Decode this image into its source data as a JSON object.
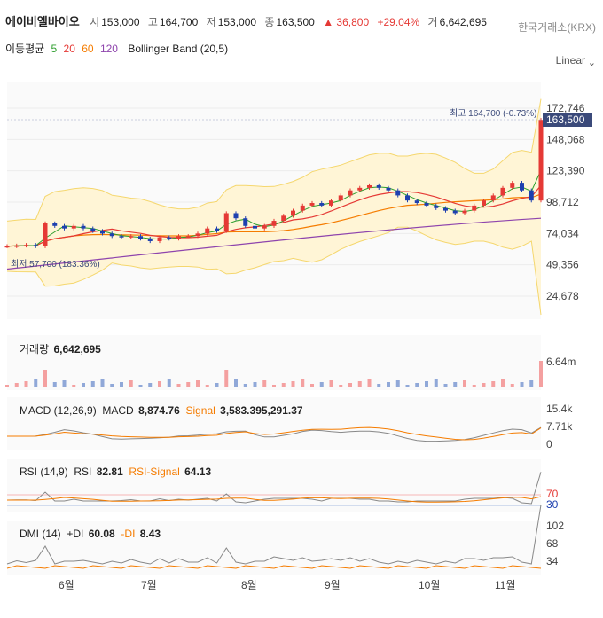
{
  "header": {
    "name": "에이비엘바이오",
    "open_label": "시",
    "open": "153,000",
    "high_label": "고",
    "high": "164,700",
    "low_label": "저",
    "low": "153,000",
    "close_label": "종",
    "close": "163,500",
    "change": "▲ 36,800",
    "change_pct": "+29.04%",
    "volume_label": "거",
    "volume": "6,642,695",
    "exchange": "한국거래소(KRX)"
  },
  "indicators": {
    "ma_label": "이동평균",
    "ma5": "5",
    "ma20": "20",
    "ma60": "60",
    "ma120": "120",
    "bb": "Bollinger Band (20,5)"
  },
  "scale_selector": "Linear",
  "price_axis": [
    "172,746",
    "148,068",
    "123,390",
    "98,712",
    "74,034",
    "49,356",
    "24,678"
  ],
  "current_price_tag": "163,500",
  "high_marker": "최고 164,700 (-0.73%)",
  "low_marker": "최저 57,700 (183.36%)",
  "volume_panel": {
    "label": "거래량",
    "value": "6,642,695",
    "axis": "6.64m"
  },
  "macd_panel": {
    "label": "MACD (12,26,9)",
    "macd_label": "MACD",
    "macd_value": "8,874.76",
    "signal_label": "Signal",
    "signal_value": "3,583.395,291.37",
    "axis": [
      "15.4k",
      "7.71k",
      "0"
    ]
  },
  "rsi_panel": {
    "label": "RSI (14,9)",
    "rsi_label": "RSI",
    "rsi_value": "82.81",
    "signal_label": "RSI-Signal",
    "signal_value": "64.13",
    "axis": [
      "70",
      "30"
    ]
  },
  "dmi_panel": {
    "label": "DMI (14)",
    "pdi_label": "+DI",
    "pdi_value": "60.08",
    "mdi_label": "-DI",
    "mdi_value": "8.43",
    "axis": [
      "102",
      "68",
      "34"
    ]
  },
  "months": [
    "6월",
    "7월",
    "8월",
    "9월",
    "10월",
    "11월"
  ],
  "colors": {
    "up": "#e53935",
    "down": "#1e40af",
    "ma5": "#2e9e2e",
    "ma20": "#e53935",
    "ma60": "#f57c00",
    "ma120": "#8e44ad",
    "bb": "#fde9a6"
  },
  "chart_data": {
    "type": "candlestick",
    "x_labels": [
      "6월",
      "7월",
      "8월",
      "9월",
      "10월",
      "11월"
    ],
    "y_ticks": [
      172746,
      148068,
      123390,
      98712,
      74034,
      49356,
      24678
    ],
    "last_close": 163500,
    "period_high": 164700,
    "period_low": 57700,
    "close_path": [
      64000,
      64500,
      65000,
      64000,
      82000,
      80000,
      78000,
      80000,
      78000,
      76000,
      74000,
      72000,
      71000,
      72000,
      70000,
      68000,
      71000,
      70000,
      72000,
      72000,
      74000,
      78000,
      76000,
      90000,
      86000,
      80000,
      78000,
      80000,
      84000,
      88000,
      92000,
      96000,
      98000,
      96000,
      100000,
      104000,
      108000,
      110000,
      112000,
      110000,
      108000,
      104000,
      100000,
      98000,
      96000,
      94000,
      92000,
      90000,
      92000,
      96000,
      100000,
      104000,
      110000,
      114000,
      108000,
      100000,
      163500
    ]
  }
}
